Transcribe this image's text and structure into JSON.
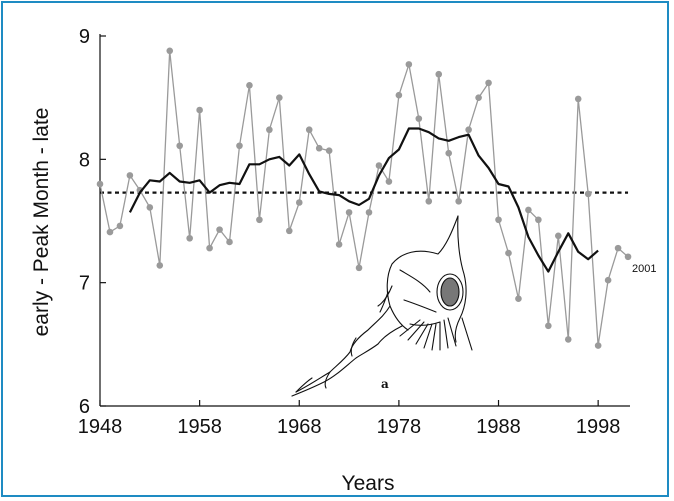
{
  "chart_data": {
    "type": "line",
    "xlabel": "Years",
    "ylabel": "early - Peak Month - late",
    "xlim": [
      1948,
      2002
    ],
    "ylim": [
      6,
      9
    ],
    "xticks": [
      1948,
      1958,
      1968,
      1978,
      1988,
      1998
    ],
    "yticks": [
      6,
      7,
      8,
      9
    ],
    "grid": false,
    "annotations": {
      "end_label": "2001",
      "figure_label": "a"
    },
    "reference_line": {
      "y": 7.73,
      "style": "dotted"
    },
    "series": [
      {
        "style": "markers-line",
        "color": "#9a9a9a",
        "x": [
          1948,
          1949,
          1950,
          1951,
          1952,
          1953,
          1954,
          1955,
          1956,
          1957,
          1958,
          1959,
          1960,
          1961,
          1962,
          1963,
          1964,
          1965,
          1966,
          1967,
          1968,
          1969,
          1970,
          1971,
          1972,
          1973,
          1974,
          1975,
          1976,
          1977,
          1978,
          1979,
          1980,
          1981,
          1982,
          1983,
          1984,
          1985,
          1986,
          1987,
          1988,
          1989,
          1990,
          1991,
          1992,
          1993,
          1994,
          1995,
          1996,
          1997,
          1998,
          1999,
          2000,
          2001
        ],
        "y": [
          7.8,
          7.41,
          7.46,
          7.87,
          7.75,
          7.61,
          7.14,
          8.88,
          8.11,
          7.36,
          8.4,
          7.28,
          7.43,
          7.33,
          8.11,
          8.6,
          7.51,
          8.24,
          8.5,
          7.42,
          7.65,
          8.24,
          8.09,
          8.07,
          7.31,
          7.57,
          7.12,
          7.57,
          7.95,
          7.82,
          8.52,
          8.77,
          8.33,
          7.66,
          8.69,
          8.05,
          7.66,
          8.24,
          8.5,
          8.62,
          7.51,
          7.24,
          6.87,
          7.59,
          7.51,
          6.65,
          7.38,
          6.54,
          8.49,
          7.72,
          6.49,
          7.02,
          7.28,
          7.21
        ]
      },
      {
        "style": "line",
        "color": "#111111",
        "x": [
          1951,
          1952,
          1953,
          1954,
          1955,
          1956,
          1957,
          1958,
          1959,
          1960,
          1961,
          1962,
          1963,
          1964,
          1965,
          1966,
          1967,
          1968,
          1969,
          1970,
          1971,
          1972,
          1973,
          1974,
          1975,
          1976,
          1977,
          1978,
          1979,
          1980,
          1981,
          1982,
          1983,
          1984,
          1985,
          1986,
          1987,
          1988,
          1989,
          1990,
          1991,
          1992,
          1993,
          1994,
          1995,
          1996,
          1997,
          1998
        ],
        "y": [
          7.57,
          7.73,
          7.83,
          7.82,
          7.89,
          7.82,
          7.81,
          7.83,
          7.73,
          7.79,
          7.81,
          7.8,
          7.96,
          7.96,
          8,
          8.02,
          7.95,
          8.04,
          7.88,
          7.74,
          7.72,
          7.71,
          7.66,
          7.63,
          7.68,
          7.87,
          8.01,
          8.08,
          8.25,
          8.25,
          8.22,
          8.17,
          8.15,
          8.18,
          8.2,
          8.03,
          7.93,
          7.8,
          7.78,
          7.61,
          7.37,
          7.22,
          7.09,
          7.25,
          7.4,
          7.25,
          7.19,
          7.26
        ]
      }
    ]
  }
}
